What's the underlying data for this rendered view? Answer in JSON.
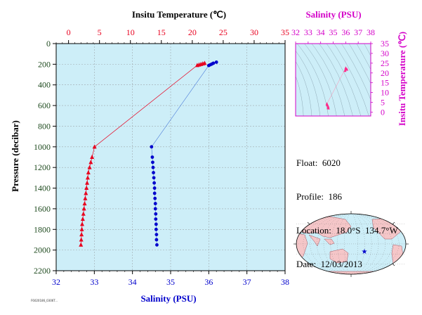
{
  "colors": {
    "temperature": "#e8001e",
    "salinity": "#0000cc",
    "pressure": "#1e4a1e",
    "ts": "#d400c8",
    "plot_bg": "#cdeef8",
    "land": "#f5c6c8",
    "ocean": "#cdeef8"
  },
  "info": {
    "float": "Float:  6020",
    "profile": "Profile:  186",
    "location": "Location:  18.0°S  134.7°W",
    "date": "Date:  12/03/2013"
  },
  "stamp": "F6020186_0306T...",
  "chart_data": [
    {
      "type": "line",
      "name": "profile",
      "top_axis_label": "Insitu Temperature (℃)",
      "bottom_axis_label": "Salinity (PSU)",
      "ylabel": "Pressure (decibar)",
      "temperature_range": [
        -2,
        35
      ],
      "temperature_ticks": [
        0,
        5,
        10,
        15,
        20,
        25,
        30,
        35
      ],
      "salinity_range": [
        32,
        38
      ],
      "salinity_ticks": [
        32,
        33,
        34,
        35,
        36,
        37,
        38
      ],
      "pressure_range": [
        0,
        2200
      ],
      "pressure_ticks": [
        0,
        200,
        400,
        600,
        800,
        1000,
        1200,
        1400,
        1600,
        1800,
        2000,
        2200
      ],
      "y_inverted": true,
      "grid": true,
      "temperature": {
        "marker": "triangle",
        "points": [
          [
            22.0,
            190
          ],
          [
            21.7,
            195
          ],
          [
            21.4,
            200
          ],
          [
            21.1,
            205
          ],
          [
            20.8,
            210
          ],
          [
            4.2,
            1000
          ],
          [
            3.8,
            1100
          ],
          [
            3.6,
            1150
          ],
          [
            3.4,
            1200
          ],
          [
            3.2,
            1250
          ],
          [
            3.1,
            1300
          ],
          [
            3.0,
            1350
          ],
          [
            2.9,
            1400
          ],
          [
            2.8,
            1450
          ],
          [
            2.7,
            1500
          ],
          [
            2.6,
            1550
          ],
          [
            2.5,
            1600
          ],
          [
            2.4,
            1650
          ],
          [
            2.3,
            1700
          ],
          [
            2.2,
            1750
          ],
          [
            2.15,
            1800
          ],
          [
            2.1,
            1850
          ],
          [
            2.05,
            1900
          ],
          [
            2.0,
            1950
          ]
        ]
      },
      "salinity": {
        "marker": "circle",
        "points": [
          [
            36.2,
            180
          ],
          [
            36.12,
            190
          ],
          [
            36.08,
            198
          ],
          [
            36.04,
            205
          ],
          [
            36.0,
            212
          ],
          [
            34.5,
            1000
          ],
          [
            34.52,
            1100
          ],
          [
            34.53,
            1150
          ],
          [
            34.54,
            1200
          ],
          [
            34.55,
            1250
          ],
          [
            34.56,
            1300
          ],
          [
            34.57,
            1350
          ],
          [
            34.58,
            1400
          ],
          [
            34.58,
            1450
          ],
          [
            34.59,
            1500
          ],
          [
            34.6,
            1550
          ],
          [
            34.6,
            1600
          ],
          [
            34.61,
            1650
          ],
          [
            34.61,
            1700
          ],
          [
            34.62,
            1750
          ],
          [
            34.62,
            1800
          ],
          [
            34.63,
            1850
          ],
          [
            34.63,
            1900
          ],
          [
            34.64,
            1950
          ]
        ]
      }
    },
    {
      "type": "scatter",
      "name": "ts_diagram",
      "top_axis_label": "Salinity (PSU)",
      "right_axis_label": "Insitu Temperature (℃)",
      "salinity_range": [
        32,
        38
      ],
      "salinity_ticks": [
        32,
        33,
        34,
        35,
        36,
        37,
        38
      ],
      "temperature_range": [
        -2,
        35
      ],
      "temperature_ticks": [
        0,
        5,
        10,
        15,
        20,
        25,
        30,
        35
      ],
      "upper_cluster": [
        [
          36.0,
          22.5
        ],
        [
          36.1,
          21.8
        ],
        [
          35.95,
          21.2
        ],
        [
          36.05,
          22.0
        ]
      ],
      "lower_cluster": [
        [
          34.5,
          4.2
        ],
        [
          34.55,
          3.5
        ],
        [
          34.6,
          2.8
        ],
        [
          34.6,
          2.2
        ],
        [
          34.62,
          2.0
        ],
        [
          34.52,
          3.8
        ]
      ]
    },
    {
      "type": "map",
      "name": "location_map",
      "marker": [
        -134.7,
        -18.0
      ]
    }
  ]
}
